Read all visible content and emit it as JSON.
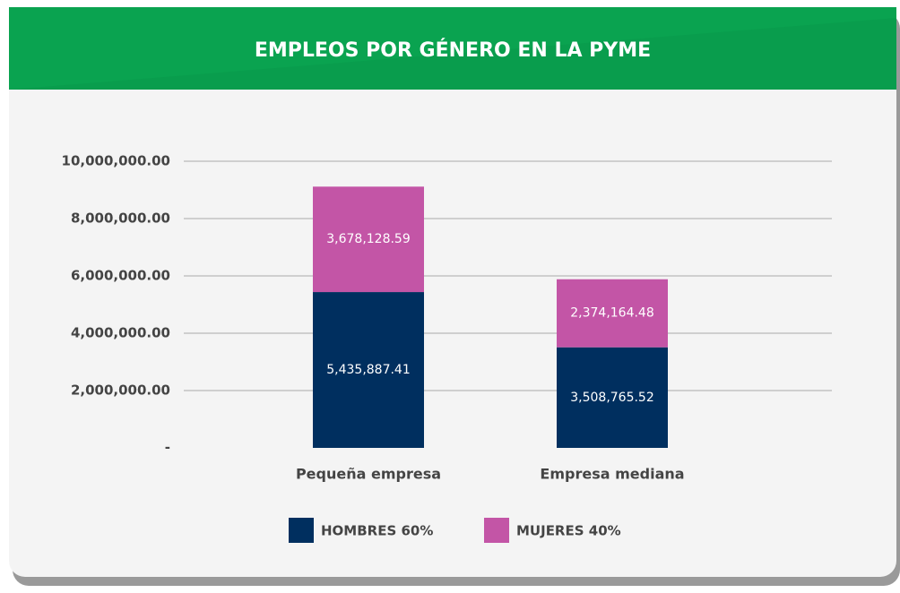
{
  "chart_data": {
    "type": "stacked_bar",
    "title": "EMPLEOS POR GÉNERO EN LA PYME",
    "categories": [
      "Pequeña empresa",
      "Empresa mediana"
    ],
    "series": [
      {
        "name": "HOMBRES 60%",
        "color": "#002f5f",
        "values": [
          5435887.41,
          3508765.52
        ],
        "value_labels": [
          "5,435,887.41",
          "3,508,765.52"
        ]
      },
      {
        "name": "MUJERES 40%",
        "color": "#c355a6",
        "values": [
          3678128.59,
          2374164.48
        ],
        "value_labels": [
          "3,678,128.59",
          "2,374,164.48"
        ]
      }
    ],
    "ylim": [
      0,
      10000000
    ],
    "yticks": [
      {
        "value": 0,
        "label": "-"
      },
      {
        "value": 2000000,
        "label": "2,000,000.00"
      },
      {
        "value": 4000000,
        "label": "4,000,000.00"
      },
      {
        "value": 6000000,
        "label": "6,000,000.00"
      },
      {
        "value": 8000000,
        "label": "8,000,000.00"
      },
      {
        "value": 10000000,
        "label": "10,000,000.00"
      }
    ],
    "grid": true,
    "legend": "bottom"
  }
}
